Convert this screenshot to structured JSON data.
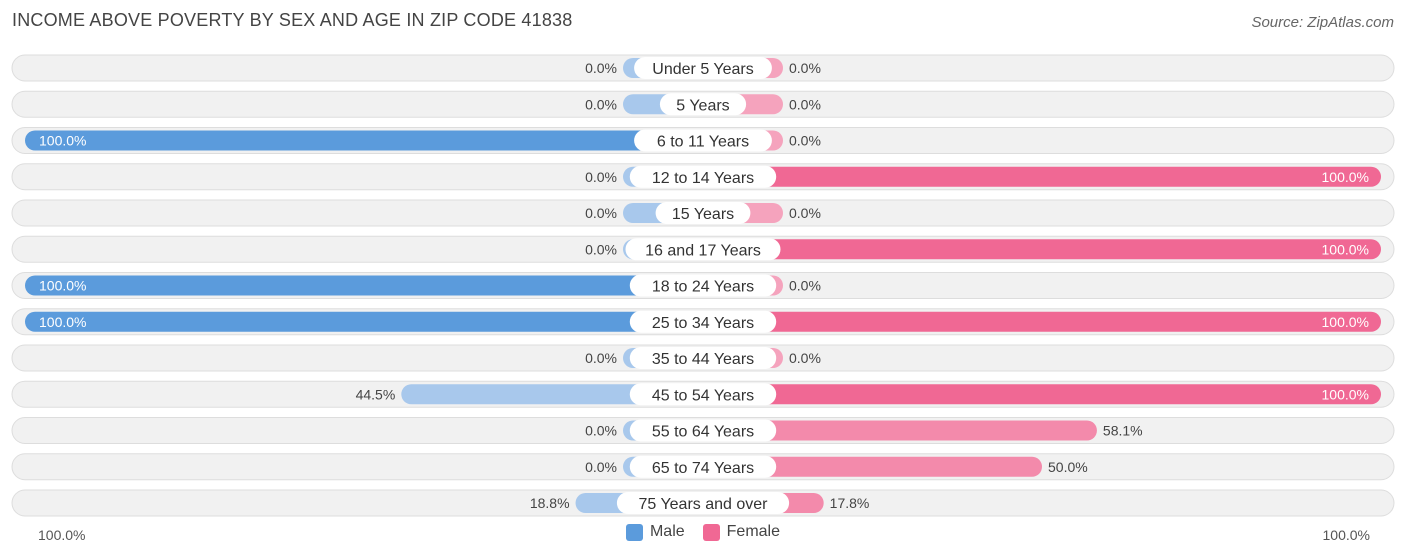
{
  "title": "INCOME ABOVE POVERTY BY SEX AND AGE IN ZIP CODE 41838",
  "source": "Source: ZipAtlas.com",
  "colors": {
    "male_full": "#5b9bdc",
    "male_light": "#a8c8ec",
    "female_full": "#f06894",
    "female_light": "#f5a3bd"
  },
  "chart_data": {
    "type": "bar",
    "orientation": "horizontal-diverging",
    "categories": [
      "Under 5 Years",
      "5 Years",
      "6 to 11 Years",
      "12 to 14 Years",
      "15 Years",
      "16 and 17 Years",
      "18 to 24 Years",
      "25 to 34 Years",
      "35 to 44 Years",
      "45 to 54 Years",
      "55 to 64 Years",
      "65 to 74 Years",
      "75 Years and over"
    ],
    "series": [
      {
        "name": "Male",
        "values": [
          0.0,
          0.0,
          100.0,
          0.0,
          0.0,
          0.0,
          100.0,
          100.0,
          0.0,
          44.5,
          0.0,
          0.0,
          18.8
        ],
        "labels": [
          "0.0%",
          "0.0%",
          "100.0%",
          "0.0%",
          "0.0%",
          "0.0%",
          "100.0%",
          "100.0%",
          "0.0%",
          "44.5%",
          "0.0%",
          "0.0%",
          "18.8%"
        ]
      },
      {
        "name": "Female",
        "values": [
          0.0,
          0.0,
          0.0,
          100.0,
          0.0,
          100.0,
          0.0,
          100.0,
          0.0,
          100.0,
          58.1,
          50.0,
          17.8
        ],
        "labels": [
          "0.0%",
          "0.0%",
          "0.0%",
          "100.0%",
          "0.0%",
          "100.0%",
          "0.0%",
          "100.0%",
          "0.0%",
          "100.0%",
          "58.1%",
          "50.0%",
          "17.8%"
        ]
      }
    ],
    "xlim": [
      -100,
      100
    ],
    "axis_left_label": "100.0%",
    "axis_right_label": "100.0%",
    "legend": [
      "Male",
      "Female"
    ],
    "legend_position": "bottom-center"
  }
}
